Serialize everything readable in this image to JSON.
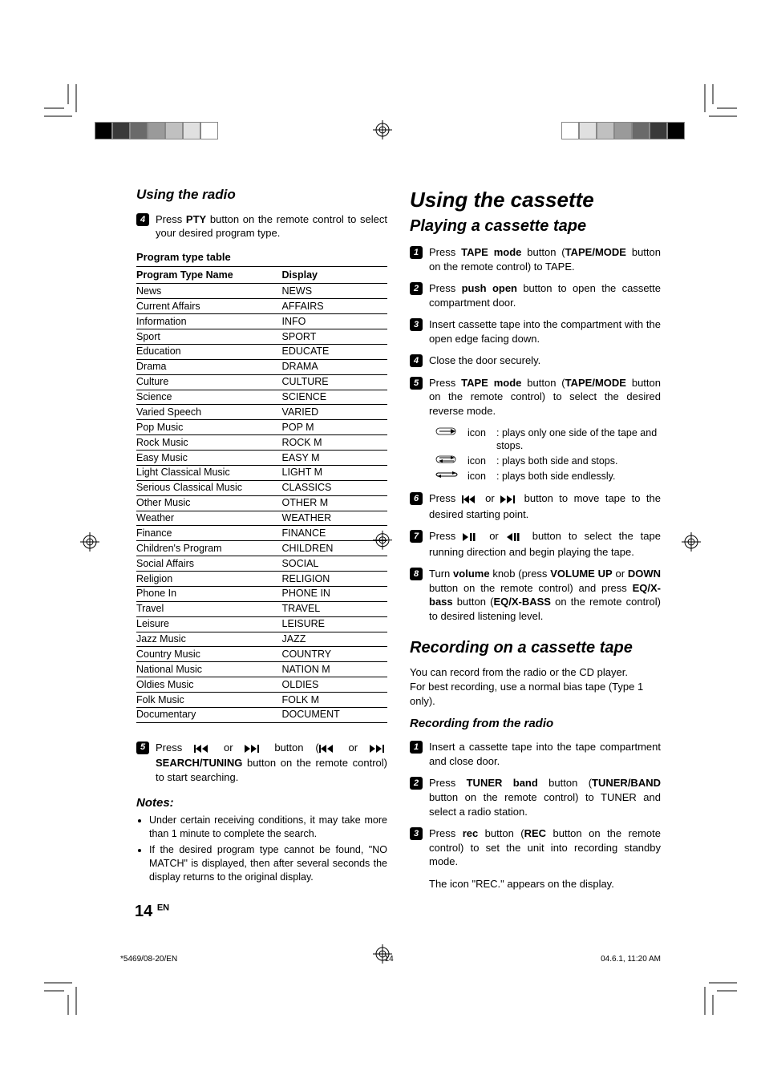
{
  "print_marks": {
    "swatch_colors_left": [
      "#000000",
      "#3a3a3a",
      "#6a6a6a",
      "#9a9a9a",
      "#c0c0c0",
      "#e0e0e0",
      "#ffffff"
    ],
    "swatch_border": "#888888"
  },
  "left": {
    "section": "Using the radio",
    "step4": {
      "n": "4",
      "pre": "Press ",
      "b1": "PTY",
      "post": " button on the remote control to select your desired program type."
    },
    "table_caption": "Program type table",
    "th1": "Program Type Name",
    "th2": "Display",
    "rows": [
      [
        "News",
        "NEWS"
      ],
      [
        "Current Affairs",
        "AFFAIRS"
      ],
      [
        "Information",
        "INFO"
      ],
      [
        "Sport",
        "SPORT"
      ],
      [
        "Education",
        "EDUCATE"
      ],
      [
        "Drama",
        "DRAMA"
      ],
      [
        "Culture",
        "CULTURE"
      ],
      [
        "Science",
        "SCIENCE"
      ],
      [
        "Varied Speech",
        "VARIED"
      ],
      [
        "Pop Music",
        "POP M"
      ],
      [
        "Rock Music",
        "ROCK M"
      ],
      [
        "Easy Music",
        "EASY M"
      ],
      [
        "Light Classical Music",
        "LIGHT M"
      ],
      [
        "Serious Classical Music",
        "CLASSICS"
      ],
      [
        "Other Music",
        "OTHER M"
      ],
      [
        "Weather",
        "WEATHER"
      ],
      [
        "Finance",
        "FINANCE"
      ],
      [
        "Children's Program",
        "CHILDREN"
      ],
      [
        "Social Affairs",
        "SOCIAL"
      ],
      [
        "Religion",
        "RELIGION"
      ],
      [
        "Phone In",
        "PHONE IN"
      ],
      [
        "Travel",
        "TRAVEL"
      ],
      [
        "Leisure",
        "LEISURE"
      ],
      [
        "Jazz Music",
        "JAZZ"
      ],
      [
        "Country Music",
        "COUNTRY"
      ],
      [
        "National Music",
        "NATION M"
      ],
      [
        "Oldies Music",
        "OLDIES"
      ],
      [
        "Folk Music",
        "FOLK M"
      ],
      [
        "Documentary",
        "DOCUMENT"
      ]
    ],
    "step5": {
      "n": "5",
      "t1": "Press ",
      "t2": " or ",
      "t3": " button (",
      "t4": " or ",
      "b1": "SEARCH/TUNING",
      "t5": " button on the remote control) to start searching."
    },
    "notes_head": "Notes:",
    "note1": "Under certain receiving conditions, it may take more than 1 minute to complete the search.",
    "note2": "If the desired program type cannot be found, \"NO MATCH\" is displayed, then after several seconds the display returns to the original display."
  },
  "right": {
    "h1": "Using the cassette",
    "h2a": "Playing a cassette tape",
    "s1": {
      "n": "1",
      "t1": "Press ",
      "b1": "TAPE mode",
      "t2": " button (",
      "b2": "TAPE/MODE",
      "t3": " button on the remote control) to TAPE."
    },
    "s2": {
      "n": "2",
      "t1": "Press ",
      "b1": "push open",
      "t2": " button to open the cassette compartment door."
    },
    "s3": {
      "n": "3",
      "t1": "Insert cassette tape into the compartment with the open edge facing down."
    },
    "s4": {
      "n": "4",
      "t1": "Close the door securely."
    },
    "s5": {
      "n": "5",
      "t1": "Press ",
      "b1": "TAPE mode",
      "t2": " button (",
      "b2": "TAPE/MODE",
      "t3": " button on the remote control) to select the desired reverse mode."
    },
    "icon_label": "icon",
    "icon1_text": ": plays only one side of the tape and stops.",
    "icon2_text": ": plays both side and stops.",
    "icon3_text": ": plays both side endlessly.",
    "s6": {
      "n": "6",
      "t1": "Press ",
      "t2": " or ",
      "t3": " button to move tape to the desired starting point."
    },
    "s7": {
      "n": "7",
      "t1": "Press ",
      "t2": " or ",
      "t3": " button to select the tape running direction and begin playing the tape."
    },
    "s8": {
      "n": "8",
      "t1": "Turn ",
      "b1": "volume",
      "t2": " knob (press ",
      "b2": "VOLUME UP",
      "t3": " or ",
      "b3": "DOWN",
      "t4": " button on the remote control) and press ",
      "b4": "EQ/X-bass",
      "t5": " button (",
      "b5": "EQ/X-BASS",
      "t6": " on the remote control) to desired listening level."
    },
    "h2b": "Recording on a cassette tape",
    "rec_intro1": "You can record from the radio or the CD player.",
    "rec_intro2": "For best recording, use a normal bias tape (Type 1 only).",
    "h3": "Recording from the radio",
    "r1": {
      "n": "1",
      "t1": "Insert a cassette tape into the tape compartment and close door."
    },
    "r2": {
      "n": "2",
      "t1": "Press ",
      "b1": "TUNER band",
      "t2": " button (",
      "b2": "TUNER/BAND",
      "t3": " button on the remote control) to TUNER and select a radio station."
    },
    "r3": {
      "n": "3",
      "t1": "Press ",
      "b1": "rec",
      "t2": " button (",
      "b2": "REC",
      "t3": " button on the remote control) to set the unit into recording standby mode."
    },
    "r_after": "The icon \"REC.\" appears on the display."
  },
  "page_number": "14",
  "page_number_suffix": "EN",
  "footer": {
    "left": "*5469/08-20/EN",
    "mid": "14",
    "right": "04.6.1, 11:20 AM"
  }
}
